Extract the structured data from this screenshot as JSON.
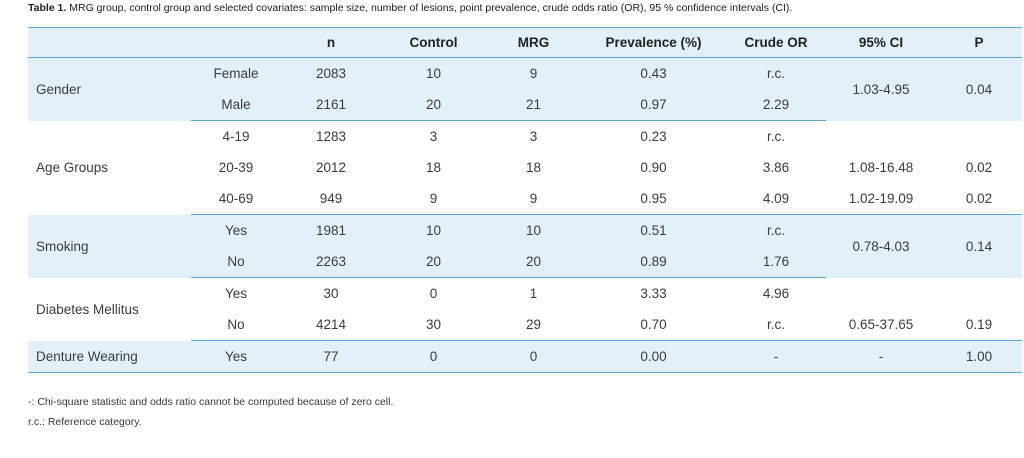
{
  "caption": {
    "label": "Table 1.",
    "text": "MRG group, control group and selected covariates: sample size, number of lesions, point prevalence, crude odds ratio (OR), 95 % confidence intervals (CI)."
  },
  "headers": [
    "",
    "",
    "n",
    "Control",
    "MRG",
    "Prevalence (%)",
    "Crude OR",
    "95% CI",
    "P"
  ],
  "groups": {
    "gender": {
      "name": "Gender",
      "ci": "1.03-4.95",
      "p": "0.04",
      "rows": [
        {
          "level": "Female",
          "n": "2083",
          "control": "10",
          "mrg": "9",
          "prev": "0.43",
          "or": "r.c."
        },
        {
          "level": "Male",
          "n": "2161",
          "control": "20",
          "mrg": "21",
          "prev": "0.97",
          "or": "2.29"
        }
      ]
    },
    "age": {
      "name": "Age Groups",
      "rows": [
        {
          "level": "4-19",
          "n": "1283",
          "control": "3",
          "mrg": "3",
          "prev": "0.23",
          "or": "r.c.",
          "ci": "",
          "p": ""
        },
        {
          "level": "20-39",
          "n": "2012",
          "control": "18",
          "mrg": "18",
          "prev": "0.90",
          "or": "3.86",
          "ci": "1.08-16.48",
          "p": "0.02"
        },
        {
          "level": "40-69",
          "n": "949",
          "control": "9",
          "mrg": "9",
          "prev": "0.95",
          "or": "4.09",
          "ci": "1.02-19.09",
          "p": "0.02"
        }
      ]
    },
    "smoking": {
      "name": "Smoking",
      "ci": "0.78-4.03",
      "p": "0.14",
      "rows": [
        {
          "level": "Yes",
          "n": "1981",
          "control": "10",
          "mrg": "10",
          "prev": "0.51",
          "or": "r.c."
        },
        {
          "level": "No",
          "n": "2263",
          "control": "20",
          "mrg": "20",
          "prev": "0.89",
          "or": "1.76"
        }
      ]
    },
    "diabetes": {
      "name": "Diabetes Mellitus",
      "rows": [
        {
          "level": "Yes",
          "n": "30",
          "control": "0",
          "mrg": "1",
          "prev": "3.33",
          "or": "4.96",
          "ci": "",
          "p": ""
        },
        {
          "level": "No",
          "n": "4214",
          "control": "30",
          "mrg": "29",
          "prev": "0.70",
          "or": "r.c.",
          "ci": "0.65-37.65",
          "p": "0.19"
        }
      ]
    },
    "denture": {
      "name": "Denture Wearing",
      "rows": [
        {
          "level": "Yes",
          "n": "77",
          "control": "0",
          "mrg": "0",
          "prev": "0.00",
          "or": "-",
          "ci": "-",
          "p": "1.00"
        }
      ]
    }
  },
  "footnotes": [
    "-: Chi-square statistic and odds ratio cannot be computed because of zero cell.",
    "r.c.: Reference category."
  ]
}
